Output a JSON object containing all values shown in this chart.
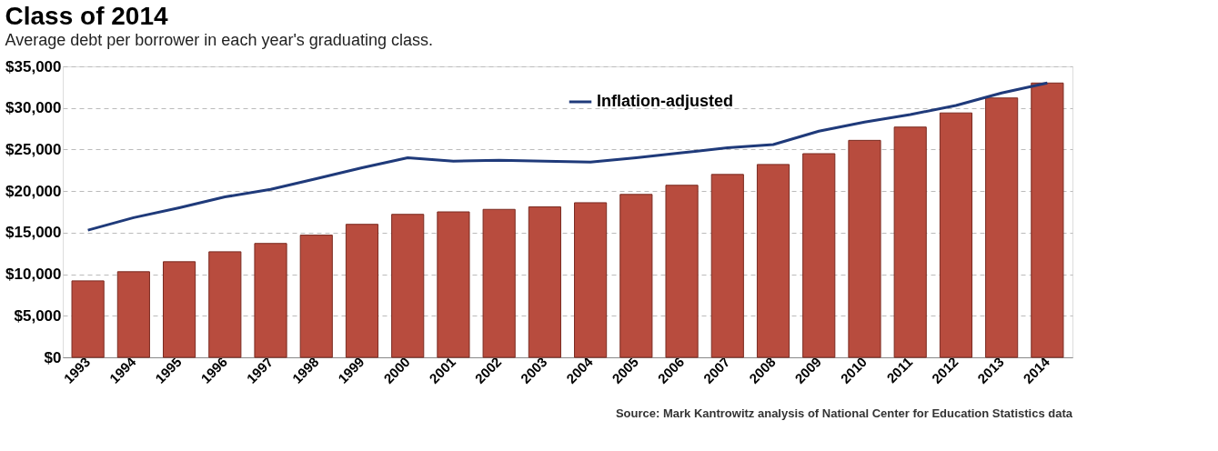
{
  "chart_data": {
    "type": "bar",
    "title": "Class of 2014",
    "subtitle": "Average debt per borrower in each year's graduating class.",
    "categories": [
      "1993",
      "1994",
      "1995",
      "1996",
      "1997",
      "1998",
      "1999",
      "2000",
      "2001",
      "2002",
      "2003",
      "2004",
      "2005",
      "2006",
      "2007",
      "2008",
      "2009",
      "2010",
      "2011",
      "2012",
      "2013",
      "2014"
    ],
    "series": [
      {
        "color": "#b84c3e",
        "values": [
          9200,
          10300,
          11500,
          12700,
          13700,
          14700,
          16000,
          17200,
          17500,
          17800,
          18100,
          18600,
          19600,
          20700,
          22000,
          23200,
          24500,
          26100,
          27700,
          29400,
          31200,
          33000
        ]
      },
      {
        "type": "line",
        "name": "Inflation-adjusted",
        "color": "#1f3a7a",
        "values": [
          15300,
          16800,
          18000,
          19300,
          20200,
          21500,
          22800,
          24000,
          23600,
          23700,
          23600,
          23500,
          24000,
          24600,
          25200,
          25600,
          27200,
          28300,
          29200,
          30300,
          31800,
          33000
        ]
      }
    ],
    "ylim": [
      0,
      35000
    ],
    "yticks": [
      {
        "value": 0,
        "label": "$0"
      },
      {
        "value": 5000,
        "label": "$5,000"
      },
      {
        "value": 10000,
        "label": "$10,000"
      },
      {
        "value": 15000,
        "label": "$15,000"
      },
      {
        "value": 20000,
        "label": "$20,000"
      },
      {
        "value": 25000,
        "label": "$25,000"
      },
      {
        "value": 30000,
        "label": "$30,000"
      },
      {
        "value": 35000,
        "label": "$35,000"
      }
    ],
    "grid": "y",
    "legend": "top right",
    "annotations": [
      "Source: Mark Kantrowitz analysis of National Center for Education Statistics data"
    ]
  }
}
